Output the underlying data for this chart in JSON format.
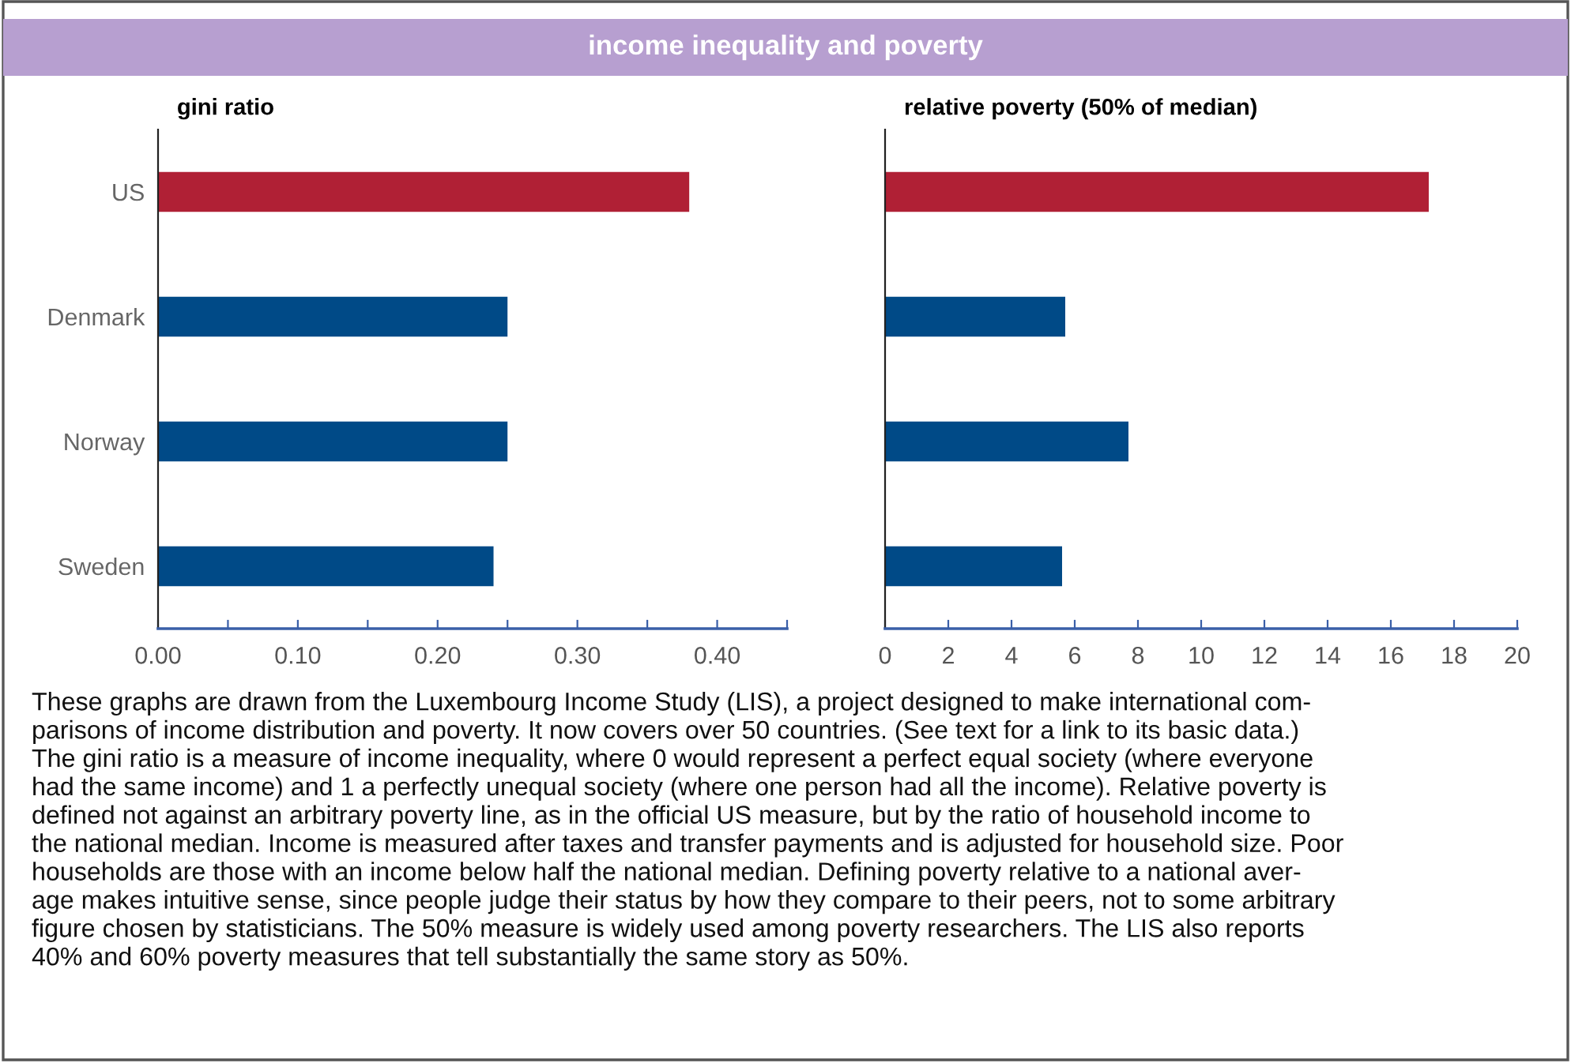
{
  "chart_data": [
    {
      "type": "other",
      "title": "income inequality and poverty"
    },
    {
      "type": "bar",
      "orientation": "horizontal",
      "title": "gini ratio",
      "categories": [
        "US",
        "Denmark",
        "Norway",
        "Sweden"
      ],
      "values": [
        0.38,
        0.25,
        0.25,
        0.24
      ],
      "colors": [
        "#b02035",
        "#004a87",
        "#004a87",
        "#004a87"
      ],
      "xlim": [
        0,
        0.45
      ],
      "xticks": [
        {
          "value": 0,
          "label": "0.00"
        },
        {
          "value": 0.05,
          "label": null
        },
        {
          "value": 0.1,
          "label": "0.10"
        },
        {
          "value": 0.15,
          "label": null
        },
        {
          "value": 0.2,
          "label": "0.20"
        },
        {
          "value": 0.25,
          "label": null
        },
        {
          "value": 0.3,
          "label": "0.30"
        },
        {
          "value": 0.35,
          "label": null
        },
        {
          "value": 0.4,
          "label": "0.40"
        },
        {
          "value": 0.45,
          "label": null
        }
      ],
      "grid": false
    },
    {
      "type": "bar",
      "orientation": "horizontal",
      "title": "relative poverty (50% of median)",
      "categories": [
        null,
        null,
        null,
        null
      ],
      "values": [
        17.2,
        5.7,
        7.7,
        5.6
      ],
      "colors": [
        "#b02035",
        "#004a87",
        "#004a87",
        "#004a87"
      ],
      "xlim": [
        0,
        20
      ],
      "xticks": [
        0,
        2,
        4,
        6,
        8,
        10,
        12,
        14,
        16,
        18,
        20
      ],
      "grid": false
    },
    {
      "type": "other",
      "annotations": [
        "These graphs are drawn from the Luxembourg Income Study (LIS), a project designed to make international com-\nparisons of income distribution and poverty. It now covers over 50 countries. (See text for a link to its basic data.)\nThe gini ratio is a measure of income inequality, where 0 would represent a perfect equal society (where everyone\nhad the same income) and 1 a perfectly unequal society (where one person had all the income). Relative poverty is\ndefined not against an arbitrary poverty line, as in the official US measure, but by the ratio of household income to\nthe national median. Income is measured after taxes and transfer payments and is adjusted for household size. Poor\nhouseholds are those with an income below half the national median. Defining poverty relative to a national aver-\nage makes intuitive sense, since people judge their status by how they compare to their peers, not to some arbitrary\nfigure chosen by statisticians. The 50% measure is widely used among poverty researchers. The LIS also reports\n40% and 60% poverty measures that tell substantially the same story as 50%."
      ]
    }
  ]
}
